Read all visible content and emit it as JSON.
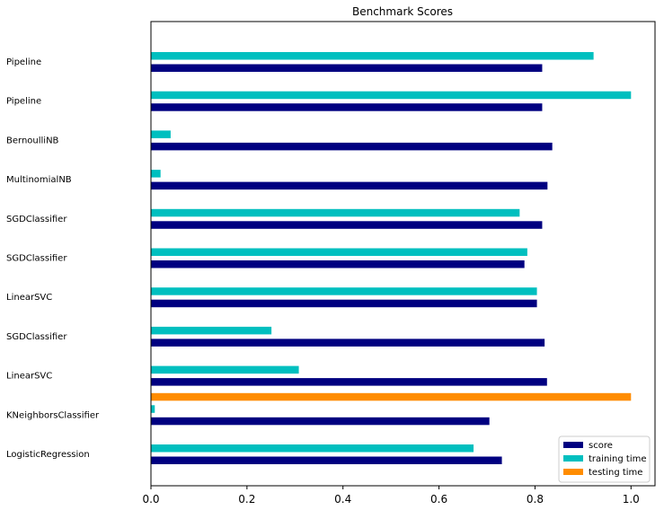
{
  "chart_data": {
    "type": "bar",
    "orientation": "horizontal",
    "title": "Benchmark Scores",
    "xlabel": "",
    "ylabel": "",
    "xlim": [
      0,
      1.05
    ],
    "xticks": [
      "0.0",
      "0.2",
      "0.4",
      "0.6",
      "0.8",
      "1.0"
    ],
    "grid": false,
    "legend_position": "lower-right",
    "categories": [
      "Pipeline",
      "Pipeline",
      "BernoulliNB",
      "MultinomialNB",
      "SGDClassifier",
      "SGDClassifier",
      "LinearSVC",
      "SGDClassifier",
      "LinearSVC",
      "KNeighborsClassifier",
      "LogisticRegression"
    ],
    "series": [
      {
        "name": "score",
        "color": "#000080",
        "values": [
          0.815,
          0.815,
          0.836,
          0.826,
          0.815,
          0.778,
          0.804,
          0.82,
          0.825,
          0.705,
          0.731
        ]
      },
      {
        "name": "training time",
        "color": "#00bfbf",
        "values": [
          0.922,
          1.0,
          0.041,
          0.02,
          0.768,
          0.784,
          0.804,
          0.251,
          0.308,
          0.008,
          0.672
        ]
      },
      {
        "name": "testing time",
        "color": "#ff8c00",
        "values": [
          0.0,
          0.0,
          0.0,
          0.0,
          0.0,
          0.0,
          0.0,
          0.0,
          0.0,
          1.0,
          0.0
        ]
      }
    ]
  }
}
